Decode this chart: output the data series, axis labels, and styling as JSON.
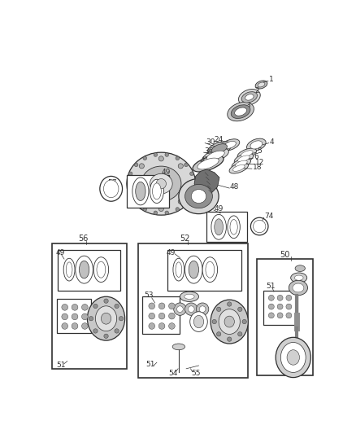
{
  "bg_color": "#ffffff",
  "lc": "#303030",
  "gray_fill": "#d0d0d0",
  "dark_fill": "#606060",
  "med_fill": "#a0a0a0"
}
